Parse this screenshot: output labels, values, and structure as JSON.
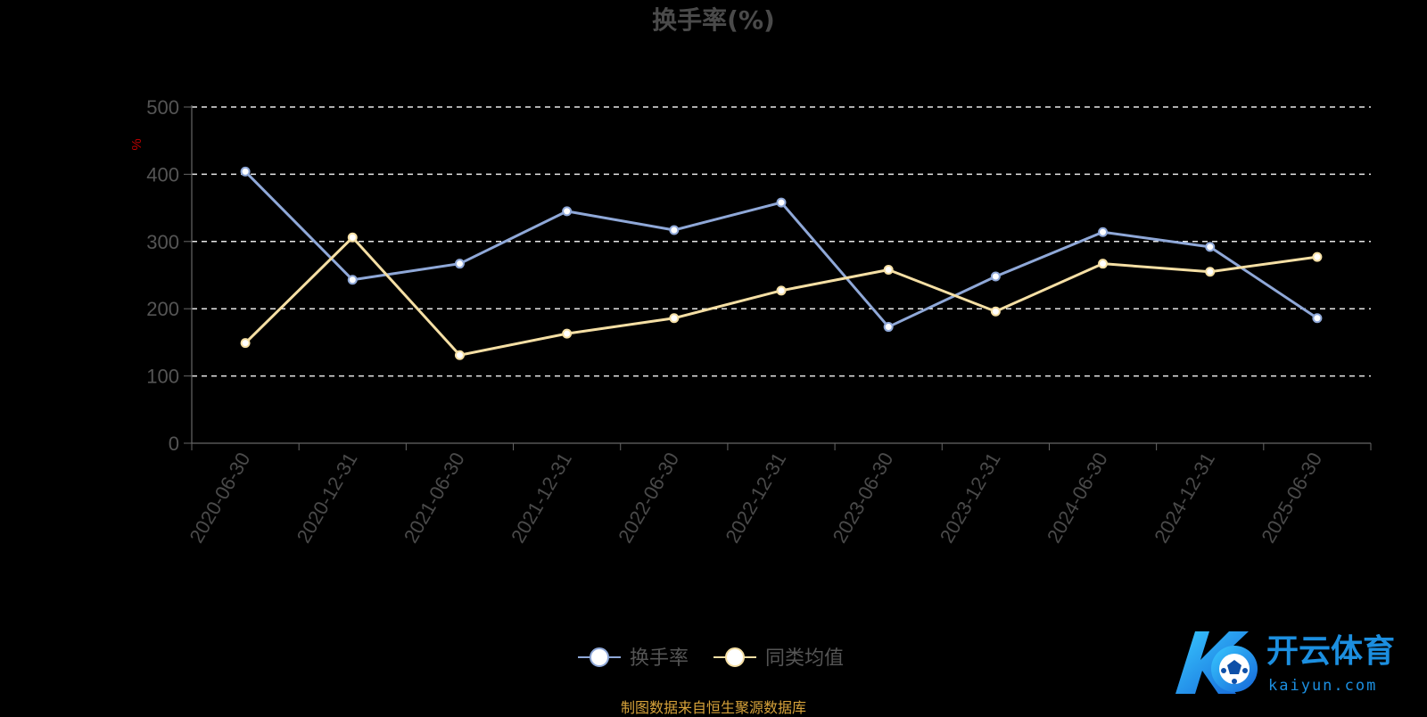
{
  "chart_data": {
    "type": "line",
    "title": "换手率(%)",
    "ylabel": "%",
    "ylim": [
      0,
      500
    ],
    "yticks": [
      0,
      100,
      200,
      300,
      400,
      500
    ],
    "categories": [
      "2020-06-30",
      "2020-12-31",
      "2021-06-30",
      "2021-12-31",
      "2022-06-30",
      "2022-12-31",
      "2023-06-30",
      "2023-12-31",
      "2024-06-30",
      "2024-12-31",
      "2025-06-30"
    ],
    "series": [
      {
        "name": "换手率",
        "color": "#8fa8d8",
        "values": [
          404,
          243,
          267,
          345,
          317,
          358,
          173,
          248,
          314,
          292,
          186
        ]
      },
      {
        "name": "同类均值",
        "color": "#f5dfa4",
        "values": [
          149,
          306,
          131,
          163,
          186,
          227,
          258,
          196,
          267,
          255,
          277
        ]
      }
    ],
    "grid": "horizontal dashed",
    "legend_position": "bottom-center"
  },
  "source_note": "制图数据来自恒生聚源数据库",
  "watermark": {
    "cn": "开云体育",
    "en": "kaiyun.com"
  }
}
